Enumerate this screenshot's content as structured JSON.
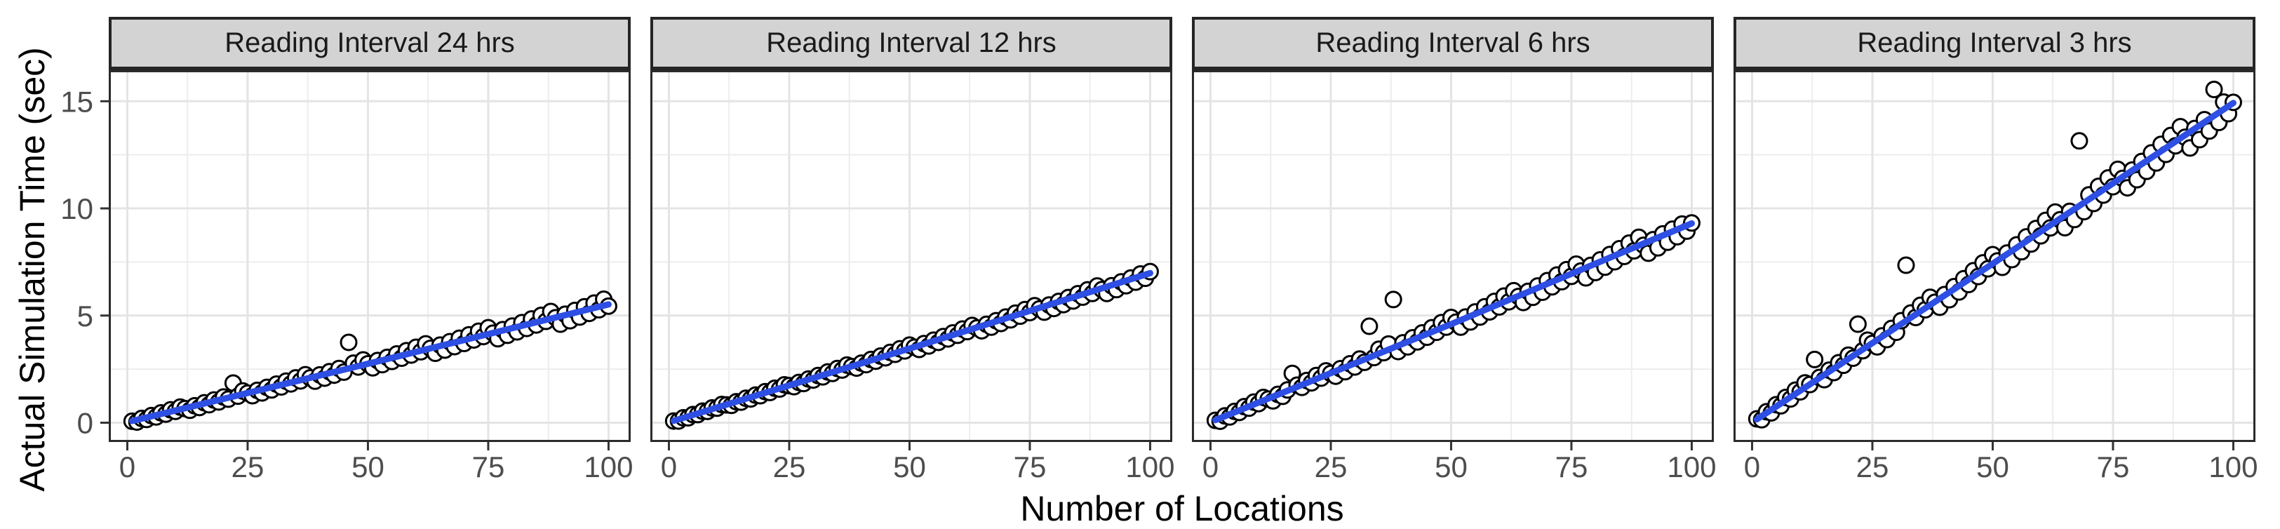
{
  "figure": {
    "y_axis_title": "Actual Simulation Time (sec)",
    "x_axis_title": "Number of Locations",
    "x_ticks": [
      0,
      25,
      50,
      75,
      100
    ],
    "y_ticks": [
      0,
      5,
      10,
      15
    ],
    "x_minor": [
      12.5,
      37.5,
      62.5,
      87.5
    ],
    "y_minor": [
      2.5,
      7.5,
      12.5
    ],
    "xlim": [
      -3.86,
      104.6
    ],
    "ylim": [
      -0.9,
      16.45
    ],
    "colors": {
      "smooth_line": "#2E4FE3",
      "point_stroke": "#000000",
      "point_fill": "#FFFFFF",
      "strip_bg": "#D3D3D3",
      "strip_border": "#252525",
      "panel_border": "#2B2B2B",
      "grid_major": "#E4E4E4",
      "grid_minor": "#EDEDED",
      "tick_mark": "#333333",
      "tick_label": "#4D4D4D"
    },
    "legend": "none",
    "grid": "on"
  },
  "chart_data": [
    {
      "type": "scatter",
      "title": "Reading Interval 24 hrs",
      "xlabel": "Number of Locations",
      "ylabel": "Actual Simulation Time (sec)",
      "x": {
        "start": 1,
        "end": 100,
        "step": 1
      },
      "y": [
        0.07,
        0.03,
        0.2,
        0.15,
        0.33,
        0.27,
        0.46,
        0.4,
        0.6,
        0.53,
        0.73,
        0.66,
        0.58,
        0.79,
        0.71,
        0.93,
        0.84,
        1.06,
        0.97,
        1.2,
        1.1,
        1.85,
        1.24,
        1.48,
        1.38,
        1.26,
        1.51,
        1.39,
        1.65,
        1.53,
        1.8,
        1.67,
        1.94,
        1.81,
        2.09,
        1.95,
        2.24,
        2.09,
        1.94,
        2.23,
        2.08,
        2.38,
        2.22,
        2.53,
        2.36,
        3.75,
        2.78,
        2.6,
        2.93,
        2.75,
        2.56,
        2.9,
        2.71,
        3.05,
        2.86,
        3.21,
        3.01,
        3.36,
        3.16,
        3.52,
        3.31,
        3.68,
        3.47,
        3.24,
        3.62,
        3.39,
        3.78,
        3.55,
        3.94,
        3.7,
        4.1,
        3.86,
        4.27,
        4.02,
        4.43,
        4.18,
        3.92,
        4.34,
        4.08,
        4.51,
        4.24,
        4.67,
        4.4,
        4.84,
        4.56,
        5.01,
        4.73,
        5.19,
        4.9,
        4.6,
        5.06,
        4.76,
        5.24,
        4.93,
        5.41,
        5.1,
        5.58,
        5.27,
        5.76,
        5.44
      ],
      "trend": {
        "x": [
          1,
          50,
          100
        ],
        "y": [
          0.08,
          2.75,
          5.52
        ]
      }
    },
    {
      "type": "scatter",
      "title": "Reading Interval 12 hrs",
      "xlabel": "Number of Locations",
      "ylabel": "Actual Simulation Time (sec)",
      "x": {
        "start": 1,
        "end": 100,
        "step": 1
      },
      "y": [
        0.08,
        0.08,
        0.23,
        0.23,
        0.38,
        0.38,
        0.54,
        0.53,
        0.69,
        0.68,
        0.85,
        0.83,
        0.81,
        0.98,
        0.96,
        1.14,
        1.11,
        1.29,
        1.26,
        1.45,
        1.41,
        1.61,
        1.57,
        1.77,
        1.73,
        1.68,
        1.88,
        1.83,
        2.04,
        1.99,
        2.2,
        2.14,
        2.37,
        2.3,
        2.53,
        2.46,
        2.69,
        2.62,
        2.55,
        2.78,
        2.71,
        2.95,
        2.87,
        3.11,
        3.03,
        3.28,
        3.19,
        3.45,
        3.35,
        3.62,
        3.52,
        3.42,
        3.69,
        3.58,
        3.85,
        3.75,
        4.02,
        3.91,
        4.19,
        4.08,
        4.37,
        4.25,
        4.54,
        4.42,
        4.29,
        4.59,
        4.46,
        4.76,
        4.63,
        4.93,
        4.8,
        5.11,
        4.97,
        5.28,
        5.14,
        5.46,
        5.31,
        5.16,
        5.49,
        5.33,
        5.66,
        5.51,
        5.84,
        5.68,
        6.02,
        5.86,
        6.2,
        6.03,
        6.38,
        6.21,
        6.03,
        6.39,
        6.21,
        6.57,
        6.39,
        6.75,
        6.56,
        6.94,
        6.74,
        7.05
      ],
      "trend": {
        "x": [
          1,
          50,
          100
        ],
        "y": [
          0.09,
          3.46,
          6.98
        ]
      }
    },
    {
      "type": "scatter",
      "title": "Reading Interval 6 hrs",
      "xlabel": "Number of Locations",
      "ylabel": "Actual Simulation Time (sec)",
      "x": {
        "start": 1,
        "end": 100,
        "step": 1
      },
      "y": [
        0.11,
        0.07,
        0.32,
        0.27,
        0.53,
        0.48,
        0.75,
        0.68,
        0.96,
        0.89,
        1.18,
        1.1,
        1.02,
        1.32,
        1.23,
        1.53,
        2.3,
        1.75,
        1.65,
        1.97,
        1.86,
        2.2,
        2.08,
        2.42,
        2.3,
        2.17,
        2.52,
        2.38,
        2.75,
        2.6,
        2.97,
        2.82,
        4.5,
        3.04,
        3.43,
        3.27,
        3.67,
        5.75,
        3.32,
        3.73,
        3.54,
        3.96,
        3.77,
        4.19,
        3.99,
        4.43,
        4.22,
        4.67,
        4.46,
        4.91,
        4.69,
        4.46,
        4.93,
        4.7,
        5.17,
        4.93,
        5.41,
        5.17,
        5.66,
        5.4,
        5.91,
        5.64,
        6.16,
        5.89,
        5.61,
        6.13,
        5.85,
        6.38,
        6.09,
        6.63,
        6.34,
        6.89,
        6.58,
        7.14,
        6.83,
        7.4,
        7.08,
        6.76,
        7.34,
        7.01,
        7.6,
        7.26,
        7.85,
        7.51,
        8.12,
        7.76,
        8.38,
        8.02,
        8.65,
        8.28,
        7.91,
        8.54,
        8.16,
        8.81,
        8.42,
        9.03,
        8.68,
        9.27,
        8.94,
        9.32
      ],
      "trend": {
        "x": [
          1,
          50,
          100
        ],
        "y": [
          0.12,
          4.6,
          9.3
        ]
      }
    },
    {
      "type": "scatter",
      "title": "Reading Interval 3 hrs",
      "xlabel": "Number of Locations",
      "ylabel": "Actual Simulation Time (sec)",
      "x": {
        "start": 1,
        "end": 100,
        "step": 1
      },
      "y": [
        0.18,
        0.14,
        0.51,
        0.46,
        0.84,
        0.79,
        1.18,
        1.11,
        1.52,
        1.44,
        1.86,
        1.78,
        2.95,
        2.11,
        2.01,
        2.45,
        2.34,
        2.8,
        2.68,
        3.15,
        3.01,
        4.6,
        3.36,
        3.85,
        3.7,
        3.54,
        4.05,
        3.88,
        4.4,
        4.22,
        4.76,
        7.35,
        5.12,
        4.91,
        5.48,
        5.27,
        5.85,
        5.62,
        5.39,
        5.98,
        5.74,
        6.35,
        6.1,
        6.72,
        6.45,
        7.09,
        6.82,
        7.46,
        7.18,
        7.84,
        7.55,
        7.25,
        7.92,
        7.61,
        8.3,
        7.98,
        8.67,
        8.34,
        9.06,
        8.72,
        9.44,
        9.09,
        9.83,
        9.47,
        9.1,
        9.86,
        9.48,
        13.15,
        9.85,
        10.63,
        10.23,
        11.03,
        10.62,
        11.42,
        11.01,
        11.82,
        11.4,
        10.96,
        11.79,
        11.34,
        12.19,
        11.73,
        12.59,
        12.12,
        12.99,
        12.52,
        13.4,
        12.92,
        13.81,
        13.32,
        12.82,
        13.73,
        13.21,
        14.14,
        13.61,
        15.55,
        14.01,
        14.96,
        14.42,
        14.95
      ],
      "trend": {
        "x": [
          1,
          50,
          100
        ],
        "y": [
          0.16,
          7.42,
          14.92
        ]
      }
    }
  ]
}
